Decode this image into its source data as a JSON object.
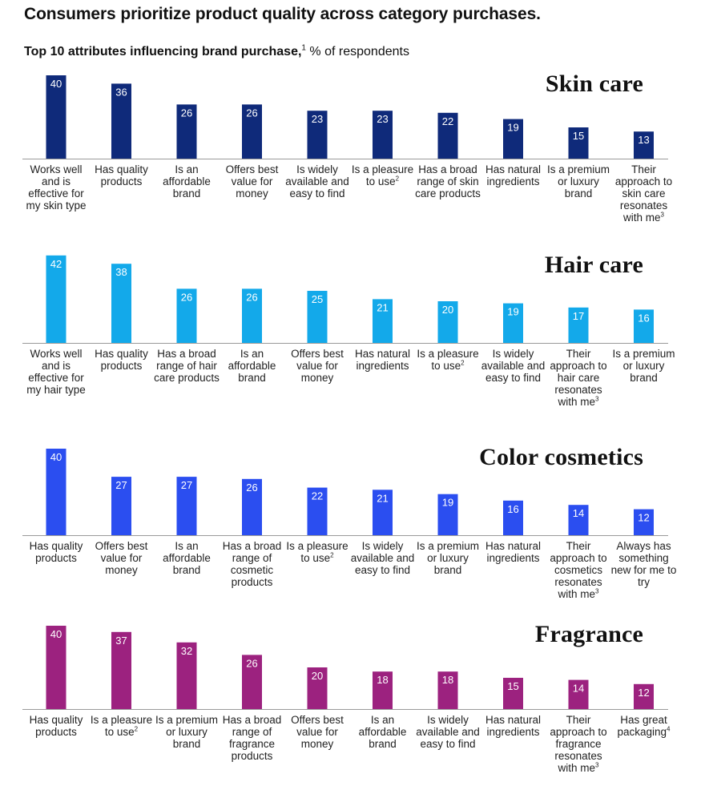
{
  "header": {
    "title": "Consumers prioritize product quality across category purchases.",
    "subtitle_strong": "Top 10 attributes influencing brand purchase,",
    "subtitle_note": "1",
    "subtitle_rest": " % of respondents"
  },
  "chart_data": [
    {
      "type": "bar",
      "title": "Skin care",
      "color": "#0f2a7a",
      "categories": [
        {
          "text": "Works well and is effective for my skin type",
          "note": ""
        },
        {
          "text": "Has quality products",
          "note": ""
        },
        {
          "text": "Is an affordable brand",
          "note": ""
        },
        {
          "text": "Offers best value for money",
          "note": ""
        },
        {
          "text": "Is widely available and easy to find",
          "note": ""
        },
        {
          "text": "Is a pleasure to use",
          "note": "2"
        },
        {
          "text": "Has a broad range of skin care products",
          "note": ""
        },
        {
          "text": "Has natural ingredients",
          "note": ""
        },
        {
          "text": "Is a premium or luxury brand",
          "note": ""
        },
        {
          "text": "Their approach to skin care resonates with me",
          "note": "3"
        }
      ],
      "values": [
        40,
        36,
        26,
        26,
        23,
        23,
        22,
        19,
        15,
        13
      ]
    },
    {
      "type": "bar",
      "title": "Hair care",
      "color": "#13a9ea",
      "categories": [
        {
          "text": "Works well and is effective for my hair type",
          "note": ""
        },
        {
          "text": "Has quality products",
          "note": ""
        },
        {
          "text": "Has a broad range of hair care products",
          "note": ""
        },
        {
          "text": "Is an affordable brand",
          "note": ""
        },
        {
          "text": "Offers best value for money",
          "note": ""
        },
        {
          "text": "Has natural ingredients",
          "note": ""
        },
        {
          "text": "Is a pleasure to use",
          "note": "2"
        },
        {
          "text": "Is widely available and easy to find",
          "note": ""
        },
        {
          "text": "Their approach to hair care resonates with me",
          "note": "3"
        },
        {
          "text": "Is a premium or luxury brand",
          "note": ""
        }
      ],
      "values": [
        42,
        38,
        26,
        26,
        25,
        21,
        20,
        19,
        17,
        16
      ]
    },
    {
      "type": "bar",
      "title": "Color cosmetics",
      "color": "#2b4ef0",
      "categories": [
        {
          "text": "Has quality products",
          "note": ""
        },
        {
          "text": "Offers best value for money",
          "note": ""
        },
        {
          "text": "Is an affordable brand",
          "note": ""
        },
        {
          "text": "Has a broad range of cosmetic products",
          "note": ""
        },
        {
          "text": "Is a pleasure to use",
          "note": "2"
        },
        {
          "text": "Is widely available and easy to find",
          "note": ""
        },
        {
          "text": "Is a premium or luxury brand",
          "note": ""
        },
        {
          "text": "Has natural ingredients",
          "note": ""
        },
        {
          "text": "Their approach to cosmetics resonates with me",
          "note": "3"
        },
        {
          "text": "Always has something new for me to try",
          "note": ""
        }
      ],
      "values": [
        40,
        27,
        27,
        26,
        22,
        21,
        19,
        16,
        14,
        12
      ]
    },
    {
      "type": "bar",
      "title": "Fragrance",
      "color": "#9c227f",
      "categories": [
        {
          "text": "Has quality products",
          "note": ""
        },
        {
          "text": "Is a pleasure to use",
          "note": "2"
        },
        {
          "text": "Is a premium or luxury brand",
          "note": ""
        },
        {
          "text": "Has a broad range of fragrance products",
          "note": ""
        },
        {
          "text": "Offers best value for money",
          "note": ""
        },
        {
          "text": "Is an affordable brand",
          "note": ""
        },
        {
          "text": "Is widely available and easy to find",
          "note": ""
        },
        {
          "text": "Has natural ingredients",
          "note": ""
        },
        {
          "text": "Their approach to fragrance resonates with me",
          "note": "3"
        },
        {
          "text": "Has great packaging",
          "note": "4"
        }
      ],
      "values": [
        40,
        37,
        32,
        26,
        20,
        18,
        18,
        15,
        14,
        12
      ]
    }
  ]
}
